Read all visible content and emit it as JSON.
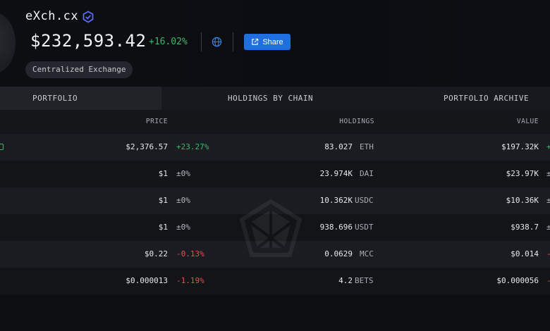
{
  "header": {
    "title": "eXch.cx",
    "price": "$232,593.42",
    "change": "+16.02%",
    "share_label": "Share",
    "tag": "Centralized Exchange"
  },
  "tabs": [
    {
      "label": "PORTFOLIO",
      "active": true
    },
    {
      "label": "HOLDINGS BY CHAIN",
      "active": false
    },
    {
      "label": "PORTFOLIO ARCHIVE",
      "active": false
    }
  ],
  "table": {
    "columns": {
      "price": "PRICE",
      "holdings": "HOLDINGS",
      "value": "VALUE"
    },
    "rows": [
      {
        "price": "$2,376.57",
        "change": "+23.27%",
        "amount": "83.027",
        "symbol": "ETH",
        "value": "$197.32K",
        "edge": "+"
      },
      {
        "price": "$1",
        "change": "±0%",
        "amount": "23.974K",
        "symbol": "DAI",
        "value": "$23.97K",
        "edge": "±"
      },
      {
        "price": "$1",
        "change": "±0%",
        "amount": "10.362K",
        "symbol": "USDC",
        "value": "$10.36K",
        "edge": "±"
      },
      {
        "price": "$1",
        "change": "±0%",
        "amount": "938.696",
        "symbol": "USDT",
        "value": "$938.7",
        "edge": "±"
      },
      {
        "price": "$0.22",
        "change": "-0.13%",
        "amount": "0.0629",
        "symbol": "MCC",
        "value": "$0.014",
        "edge": "-"
      },
      {
        "price": "$0.000013",
        "change": "-1.19%",
        "amount": "4.2",
        "symbol": "BETS",
        "value": "$0.000056",
        "edge": "-"
      }
    ]
  },
  "colors": {
    "positive": "#3fb86b",
    "negative": "#e0544f",
    "accent": "#1f6fe0",
    "verified": "#5b6cf5"
  },
  "icons": [
    "verified-badge-icon",
    "globe-icon",
    "share-icon",
    "watermark-logo-icon"
  ]
}
